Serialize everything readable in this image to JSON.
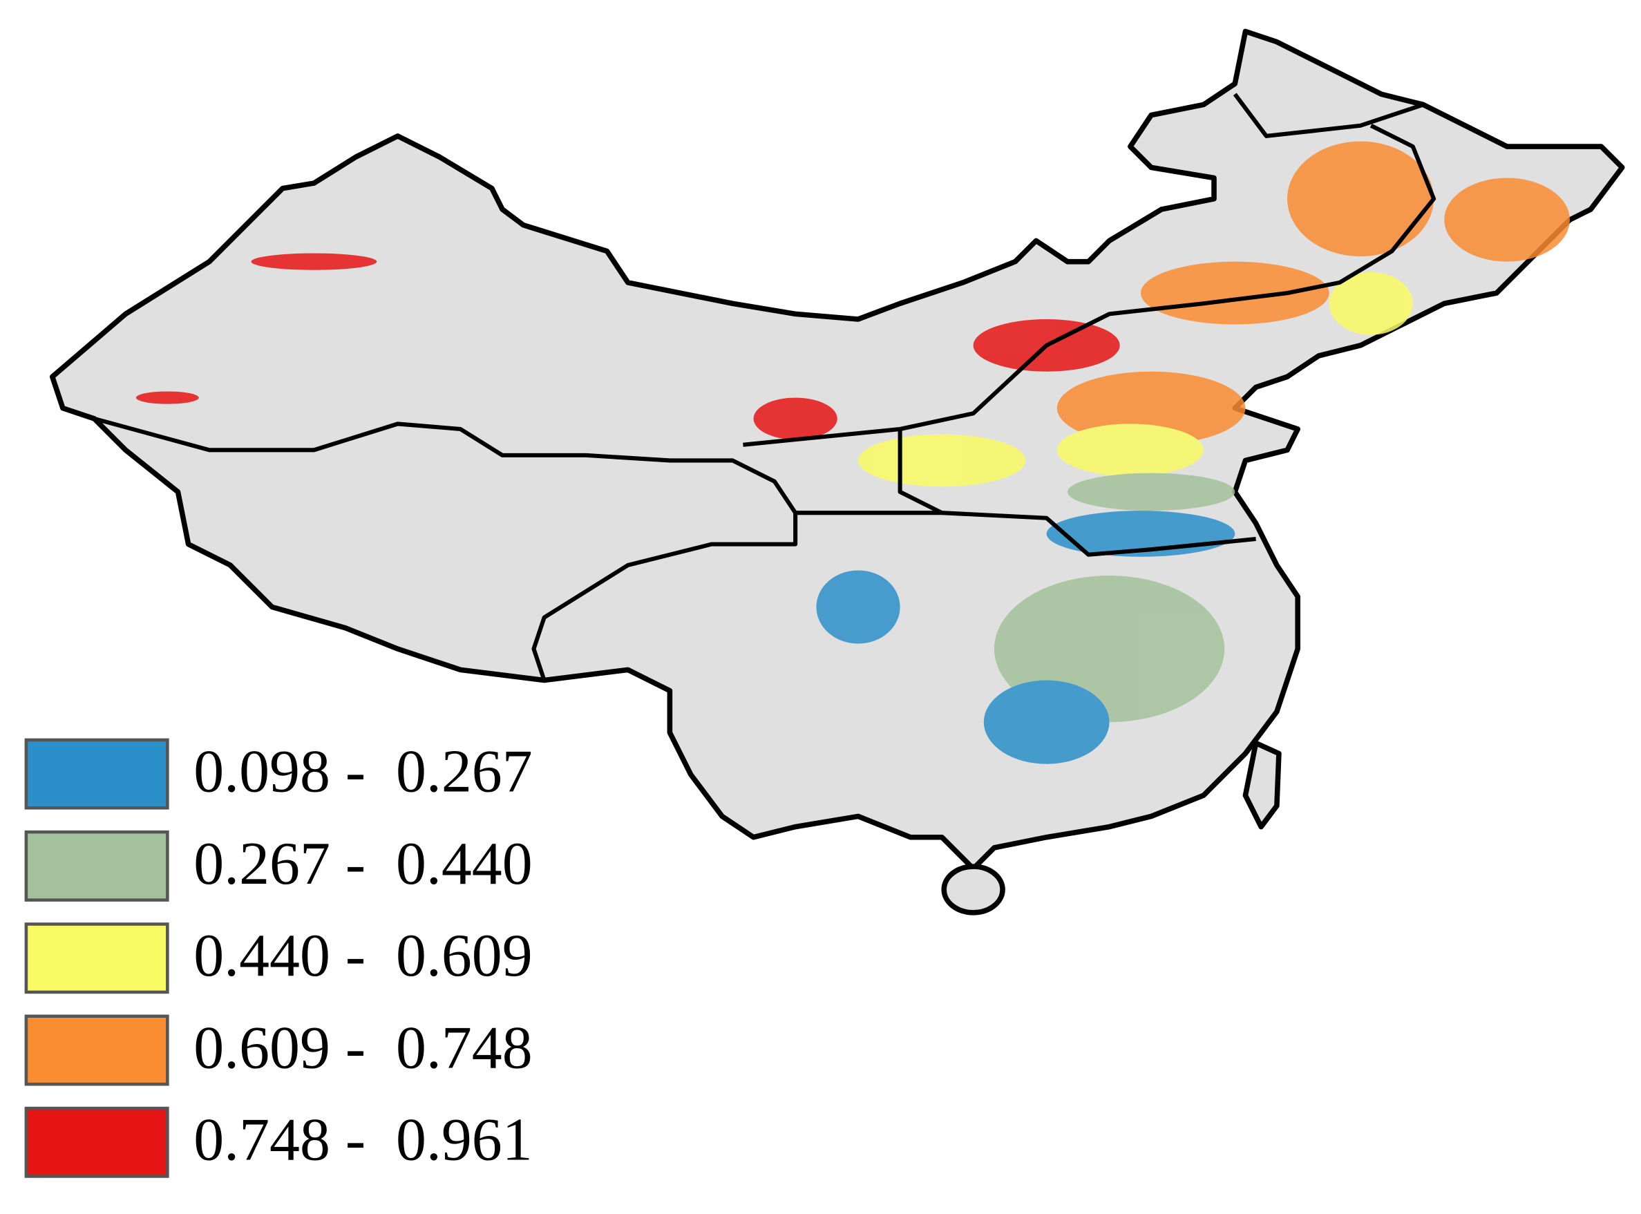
{
  "legend": {
    "items": [
      {
        "label": "0.098 -  0.267",
        "color": "#2b8fc9"
      },
      {
        "label": "0.267 -  0.440",
        "color": "#a3c19b"
      },
      {
        "label": "0.440 -  0.609",
        "color": "#fafa64"
      },
      {
        "label": "0.609 -  0.748",
        "color": "#fa8c32"
      },
      {
        "label": "0.748 -  0.961",
        "color": "#e61414"
      }
    ]
  }
}
